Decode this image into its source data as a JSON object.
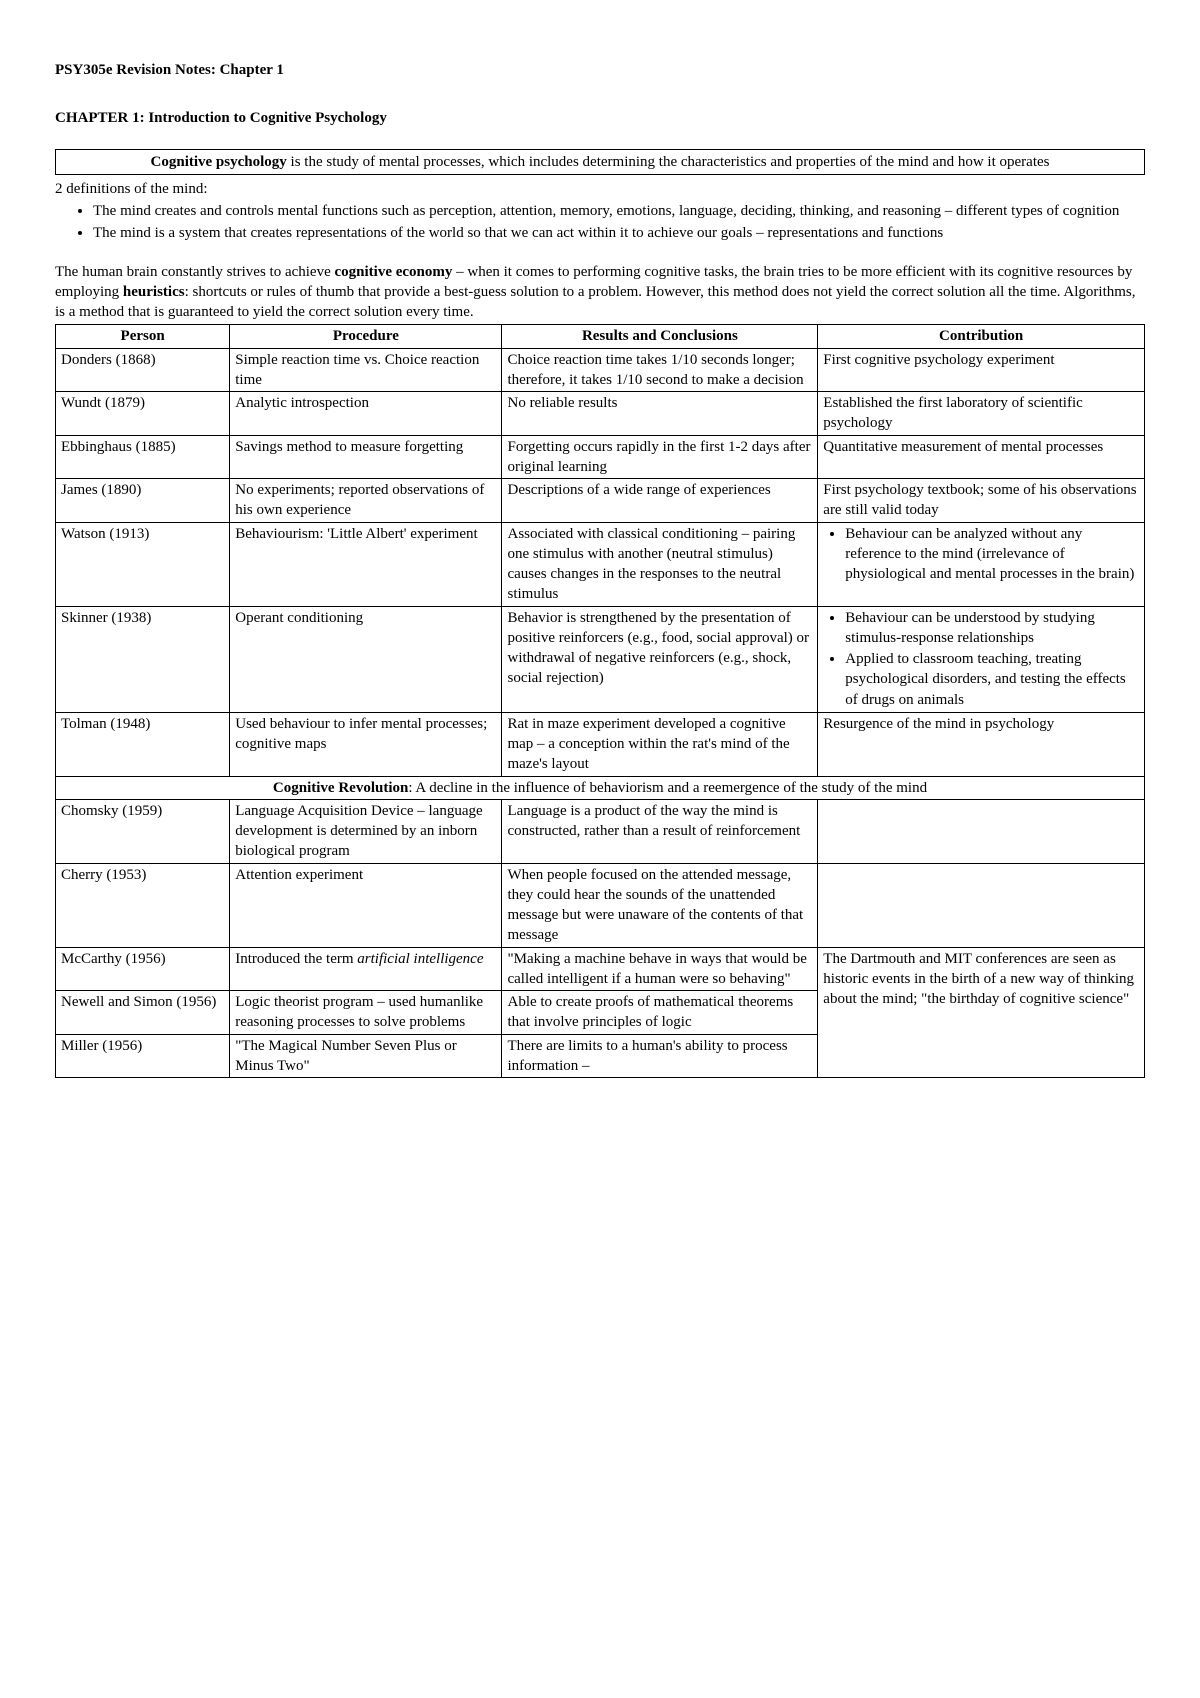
{
  "header": "PSY305e Revision Notes: Chapter 1",
  "chapter": "CHAPTER 1:  Introduction to Cognitive Psychology",
  "definition_box": {
    "term": "Cognitive psychology",
    "text": " is the study of mental processes, which includes determining the characteristics and properties of the mind and how it operates"
  },
  "definitions_intro": "2 definitions of the mind:",
  "definitions": [
    "The mind creates and controls mental functions such as perception, attention, memory, emotions, language, deciding, thinking, and reasoning – different types of cognition",
    "The mind is a system that creates representations of the world so that we can act within it to achieve our goals – representations and functions"
  ],
  "paragraph": {
    "p1": "The human brain constantly strives to achieve ",
    "b1": "cognitive economy",
    "p2": " – when it comes to performing cognitive tasks, the brain tries to be more efficient with its cognitive resources by employing ",
    "b2": "heuristics",
    "p3": ": shortcuts or rules of thumb that provide a best-guess solution to a problem. However, this method does not yield the correct solution all the time. Algorithms, is a method that is guaranteed to yield the correct solution every time."
  },
  "table": {
    "headers": [
      "Person",
      "Procedure",
      "Results and Conclusions",
      "Contribution"
    ],
    "rows": [
      {
        "person": "Donders (1868)",
        "procedure": "Simple reaction time vs. Choice reaction time",
        "results": "Choice reaction time takes 1/10 seconds longer; therefore, it takes 1/10 second to make a decision",
        "contribution": "First cognitive psychology experiment"
      },
      {
        "person": "Wundt (1879)",
        "procedure": "Analytic introspection",
        "results": "No reliable results",
        "contribution": "Established the first laboratory of scientific psychology"
      },
      {
        "person": "Ebbinghaus (1885)",
        "procedure": "Savings method to measure forgetting",
        "results": "Forgetting occurs rapidly in the first 1-2 days after original learning",
        "contribution": "Quantitative measurement of mental processes"
      },
      {
        "person": "James (1890)",
        "procedure": "No experiments; reported observations of his own experience",
        "results": "Descriptions of a wide range of experiences",
        "contribution": "First psychology textbook; some of his observations are still valid today"
      }
    ],
    "watson": {
      "person": "Watson (1913)",
      "procedure": "Behaviourism: 'Little Albert' experiment",
      "results": "Associated with classical conditioning – pairing one stimulus with another (neutral stimulus) causes changes in the responses to the neutral stimulus",
      "contrib_bullets": [
        "Behaviour can be analyzed without any reference to the mind (irrelevance of physiological and mental processes in the brain)"
      ]
    },
    "skinner": {
      "person": "Skinner (1938)",
      "procedure": "Operant conditioning",
      "results": "Behavior is strengthened by the presentation of positive reinforcers (e.g., food, social approval) or withdrawal of negative reinforcers (e.g., shock, social rejection)",
      "contrib_bullets": [
        "Behaviour can be understood by studying stimulus-response relationships",
        "Applied to classroom teaching, treating psychological disorders, and testing the effects of drugs on animals"
      ]
    },
    "tolman": {
      "person": "Tolman (1948)",
      "procedure": "Used behaviour to infer mental processes; cognitive maps",
      "results": "Rat in maze experiment developed a cognitive map – a conception within the rat's mind of the maze's layout",
      "contribution": "Resurgence of the mind in psychology"
    },
    "span_row": {
      "term": "Cognitive Revolution",
      "text": ": A decline in the influence of behaviorism and a reemergence of the study of the mind"
    },
    "chomsky": {
      "person": "Chomsky (1959)",
      "procedure": "Language Acquisition Device – language development is determined by an inborn biological program",
      "results": "Language is a product of the way the mind is constructed, rather than a result of reinforcement",
      "contribution": ""
    },
    "cherry": {
      "person": "Cherry (1953)",
      "procedure": "Attention experiment",
      "results": "When people focused on the attended message, they could hear the sounds of the unattended message but were unaware of the contents of that message",
      "contribution": ""
    },
    "mccarthy": {
      "person": "McCarthy (1956)",
      "proc_pre": "Introduced the term ",
      "proc_italic": "artificial intelligence",
      "results": "\"Making a machine behave in ways that would be called intelligent if a human were so behaving\"",
      "contribution": "The Dartmouth and MIT conferences are seen as historic events in the birth of a new way of thinking about the mind; \"the birthday of cognitive science\""
    },
    "newell": {
      "person": "Newell and Simon (1956)",
      "procedure": "Logic theorist program – used humanlike reasoning processes to solve problems",
      "results": "Able to create proofs of mathematical theorems that involve principles of logic"
    },
    "miller": {
      "person": "Miller (1956)",
      "procedure": "\"The Magical Number Seven Plus or Minus Two\"",
      "results": "There are limits to a human's ability to process information –"
    }
  }
}
